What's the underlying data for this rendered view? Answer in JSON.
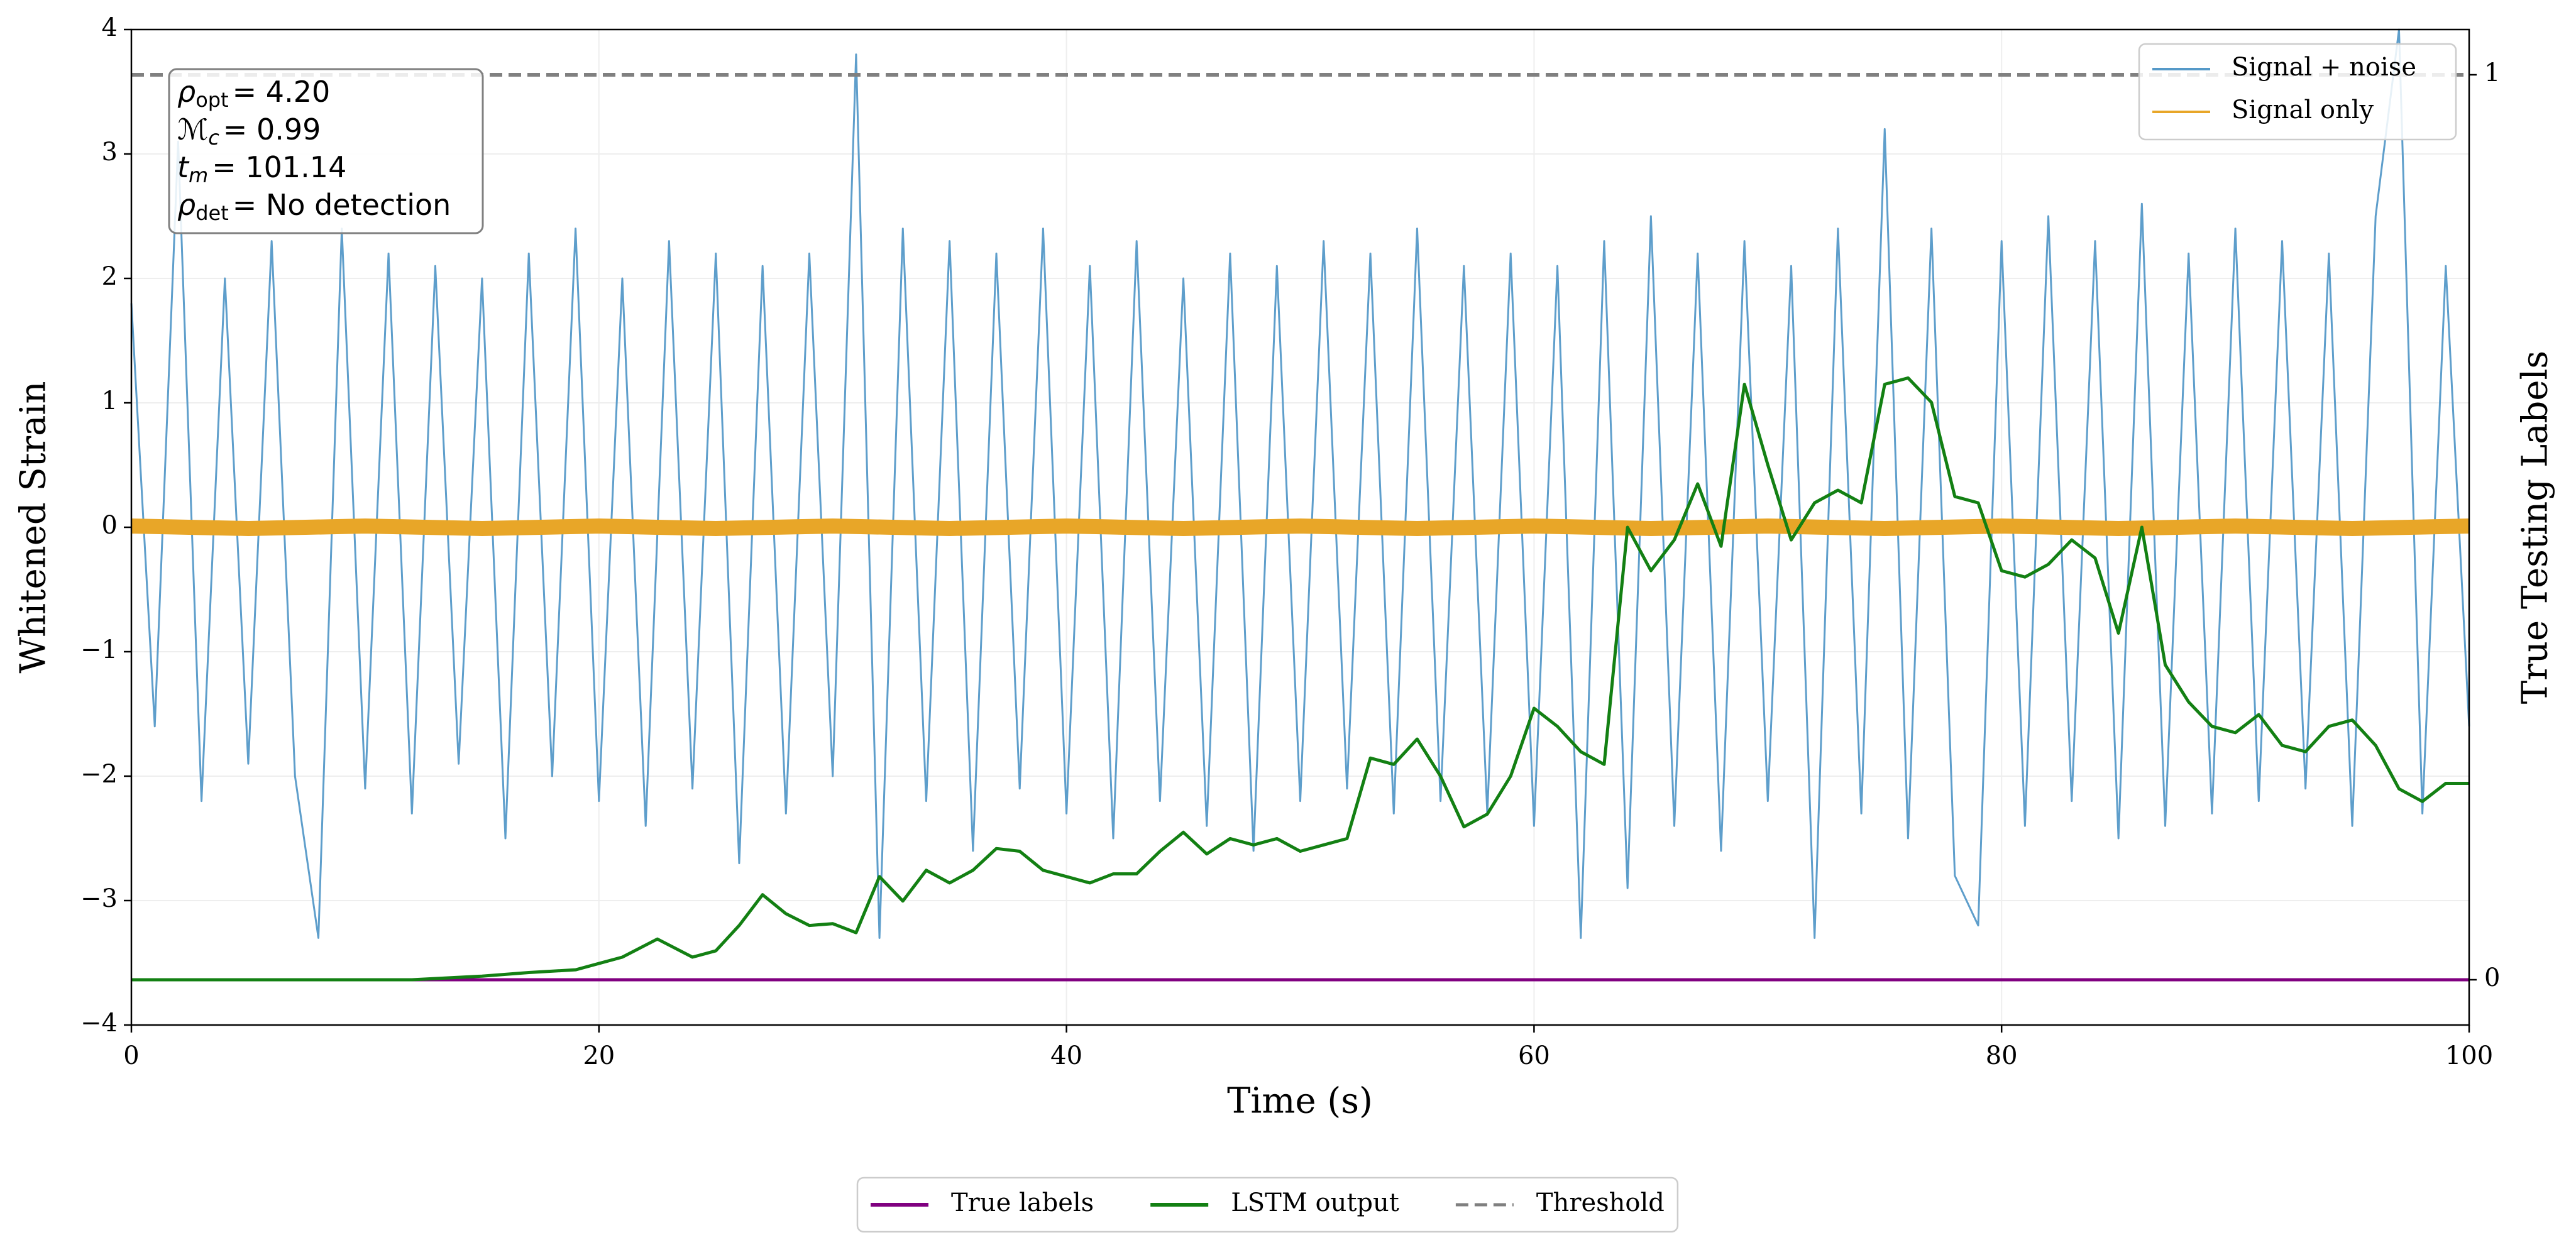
{
  "chart_data": {
    "type": "line",
    "xlabel": "Time (s)",
    "ylabel": "Whitened Strain",
    "y2label": "True Testing Labels",
    "xlim": [
      0,
      100
    ],
    "ylim": [
      -4,
      4
    ],
    "y2lim": [
      -0.05,
      1.05
    ],
    "xticks": [
      0,
      20,
      40,
      60,
      80,
      100
    ],
    "yticks": [
      {
        "value": -4,
        "label": "−4"
      },
      {
        "value": -3,
        "label": "−3"
      },
      {
        "value": -2,
        "label": "−2"
      },
      {
        "value": -1,
        "label": "−1"
      },
      0,
      1,
      2,
      3,
      4
    ],
    "y2ticks": [
      0,
      1
    ],
    "grid": true,
    "annotation": [
      {
        "symbol": "ρ",
        "sub": "opt",
        "text": "= 4.20"
      },
      {
        "symbol": "ℳ",
        "sub": "c",
        "text": "= 0.99"
      },
      {
        "symbol": "t",
        "sub": "m",
        "text": "= 101.14"
      },
      {
        "symbol": "ρ",
        "sub": "det",
        "text": "= No detection"
      }
    ],
    "series": [
      {
        "name": "Signal + noise",
        "color": "#5599c8",
        "legend": "upper right",
        "x": [
          0,
          1,
          2,
          3,
          4,
          5,
          6,
          7,
          8,
          9,
          10,
          11,
          12,
          13,
          14,
          15,
          16,
          17,
          18,
          19,
          20,
          21,
          22,
          23,
          24,
          25,
          26,
          27,
          28,
          29,
          30,
          31,
          32,
          33,
          34,
          35,
          36,
          37,
          38,
          39,
          40,
          41,
          42,
          43,
          44,
          45,
          46,
          47,
          48,
          49,
          50,
          51,
          52,
          53,
          54,
          55,
          56,
          57,
          58,
          59,
          60,
          61,
          62,
          63,
          64,
          65,
          66,
          67,
          68,
          69,
          70,
          71,
          72,
          73,
          74,
          75,
          76,
          77,
          78,
          79,
          80,
          81,
          82,
          83,
          84,
          85,
          86,
          87,
          88,
          89,
          90,
          91,
          92,
          93,
          94,
          95,
          96,
          97,
          98,
          99,
          100
        ],
        "values": [
          1.8,
          -1.6,
          3.1,
          -2.2,
          2.0,
          -1.9,
          2.3,
          -2.0,
          -3.3,
          2.4,
          -2.1,
          2.2,
          -2.3,
          2.1,
          -1.9,
          2.0,
          -2.5,
          2.2,
          -2.0,
          2.4,
          -2.2,
          2.0,
          -2.4,
          2.3,
          -2.1,
          2.2,
          -2.7,
          2.1,
          -2.3,
          2.2,
          -2.0,
          3.8,
          -3.3,
          2.4,
          -2.2,
          2.3,
          -2.6,
          2.2,
          -2.1,
          2.4,
          -2.3,
          2.1,
          -2.5,
          2.3,
          -2.2,
          2.0,
          -2.4,
          2.2,
          -2.6,
          2.1,
          -2.2,
          2.3,
          -2.1,
          2.2,
          -2.3,
          2.4,
          -2.2,
          2.1,
          -2.3,
          2.2,
          -2.4,
          2.1,
          -3.3,
          2.3,
          -2.9,
          2.5,
          -2.4,
          2.2,
          -2.6,
          2.3,
          -2.2,
          2.1,
          -3.3,
          2.4,
          -2.3,
          3.2,
          -2.5,
          2.4,
          -2.8,
          -3.2,
          2.3,
          -2.4,
          2.5,
          -2.2,
          2.3,
          -2.5,
          2.6,
          -2.4,
          2.2,
          -2.3,
          2.4,
          -2.2,
          2.3,
          -2.1,
          2.2,
          -2.4,
          2.5,
          4.0,
          -2.3,
          2.1,
          -1.6
        ]
      },
      {
        "name": "Signal only",
        "color": "#e8a628",
        "legend": "upper right",
        "x": [
          0,
          5,
          10,
          15,
          20,
          25,
          30,
          35,
          40,
          45,
          50,
          55,
          60,
          65,
          70,
          75,
          80,
          85,
          90,
          95,
          100
        ],
        "values": [
          0.01,
          -0.01,
          0.01,
          -0.01,
          0.01,
          -0.01,
          0.01,
          -0.01,
          0.01,
          -0.01,
          0.01,
          -0.01,
          0.01,
          -0.01,
          0.01,
          -0.01,
          0.01,
          -0.01,
          0.01,
          -0.01,
          0.01
        ]
      },
      {
        "name": "True labels",
        "color": "#800080",
        "legend": "lower center",
        "axis": "y2",
        "x": [
          0,
          100
        ],
        "values": [
          0,
          0
        ]
      },
      {
        "name": "Threshold",
        "color": "#808080",
        "legend": "lower center",
        "axis": "y2",
        "dashed": true,
        "x": [
          0,
          100
        ],
        "values": [
          1,
          1
        ]
      },
      {
        "name": "LSTM output",
        "color": "#138013",
        "legend": "lower center",
        "axis": "y2",
        "x": [
          0,
          12,
          15,
          17,
          19,
          20,
          21,
          22.5,
          24,
          25,
          26,
          27,
          28,
          29,
          30,
          31,
          32,
          33,
          34,
          35,
          36,
          37,
          38,
          39,
          40,
          41,
          42,
          43,
          44,
          45,
          46,
          47,
          48,
          49,
          50,
          51,
          52,
          53,
          54,
          55,
          56,
          57,
          58,
          59,
          60,
          61,
          62,
          63,
          64,
          65,
          66,
          67,
          68,
          69,
          70,
          71,
          72,
          73,
          74,
          75,
          76,
          77,
          78,
          79,
          80,
          81,
          82,
          83,
          84,
          85,
          86,
          87,
          88,
          89,
          90,
          91,
          92,
          93,
          94,
          95,
          96,
          97,
          98,
          99,
          100
        ],
        "values": [
          0,
          0,
          0.004,
          0.008,
          0.011,
          0.018,
          0.025,
          0.045,
          0.025,
          0.032,
          0.06,
          0.094,
          0.073,
          0.06,
          0.062,
          0.052,
          0.114,
          0.087,
          0.121,
          0.107,
          0.121,
          0.145,
          0.142,
          0.121,
          0.114,
          0.107,
          0.117,
          0.117,
          0.142,
          0.163,
          0.139,
          0.156,
          0.149,
          0.156,
          0.142,
          0.149,
          0.156,
          0.245,
          0.238,
          0.266,
          0.225,
          0.169,
          0.183,
          0.225,
          0.3,
          0.28,
          0.252,
          0.238,
          0.5,
          0.452,
          0.486,
          0.548,
          0.479,
          0.658,
          0.569,
          0.486,
          0.527,
          0.541,
          0.527,
          0.658,
          0.665,
          0.638,
          0.534,
          0.527,
          0.452,
          0.445,
          0.459,
          0.486,
          0.466,
          0.383,
          0.5,
          0.348,
          0.307,
          0.28,
          0.273,
          0.293,
          0.259,
          0.252,
          0.28,
          0.287,
          0.259,
          0.211,
          0.197,
          0.217,
          0.217
        ]
      }
    ]
  }
}
